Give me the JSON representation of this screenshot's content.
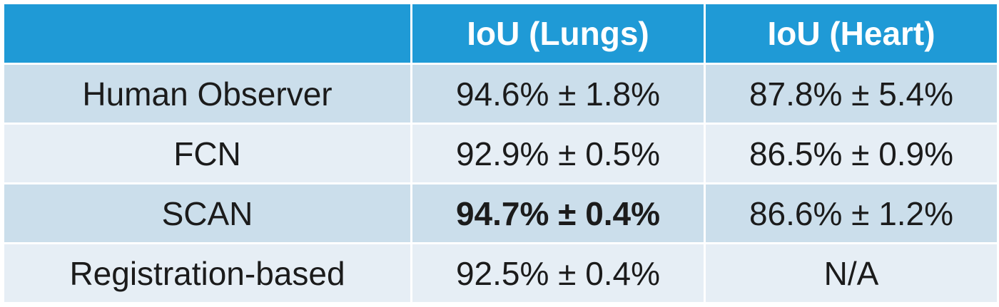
{
  "chart_data": {
    "type": "table",
    "columns": [
      "",
      "IoU (Lungs)",
      "IoU (Heart)"
    ],
    "rows": [
      {
        "method": "Human Observer",
        "lungs": "94.6% ± 1.8%",
        "heart": "87.8% ± 5.4%"
      },
      {
        "method": "FCN",
        "lungs": "92.9% ± 0.5%",
        "heart": "86.5% ± 0.9%"
      },
      {
        "method": "SCAN",
        "lungs": "94.7% ± 0.4%",
        "heart": "86.6% ± 1.2%"
      },
      {
        "method": "Registration-based",
        "lungs": "92.5% ± 0.4%",
        "heart": "N/A"
      }
    ],
    "bold_cells": [
      {
        "row": 2,
        "column": "lungs"
      }
    ],
    "colors": {
      "header": "#1f9ad6",
      "row_dark": "#cbdeeb",
      "row_light": "#e6eef5"
    }
  }
}
